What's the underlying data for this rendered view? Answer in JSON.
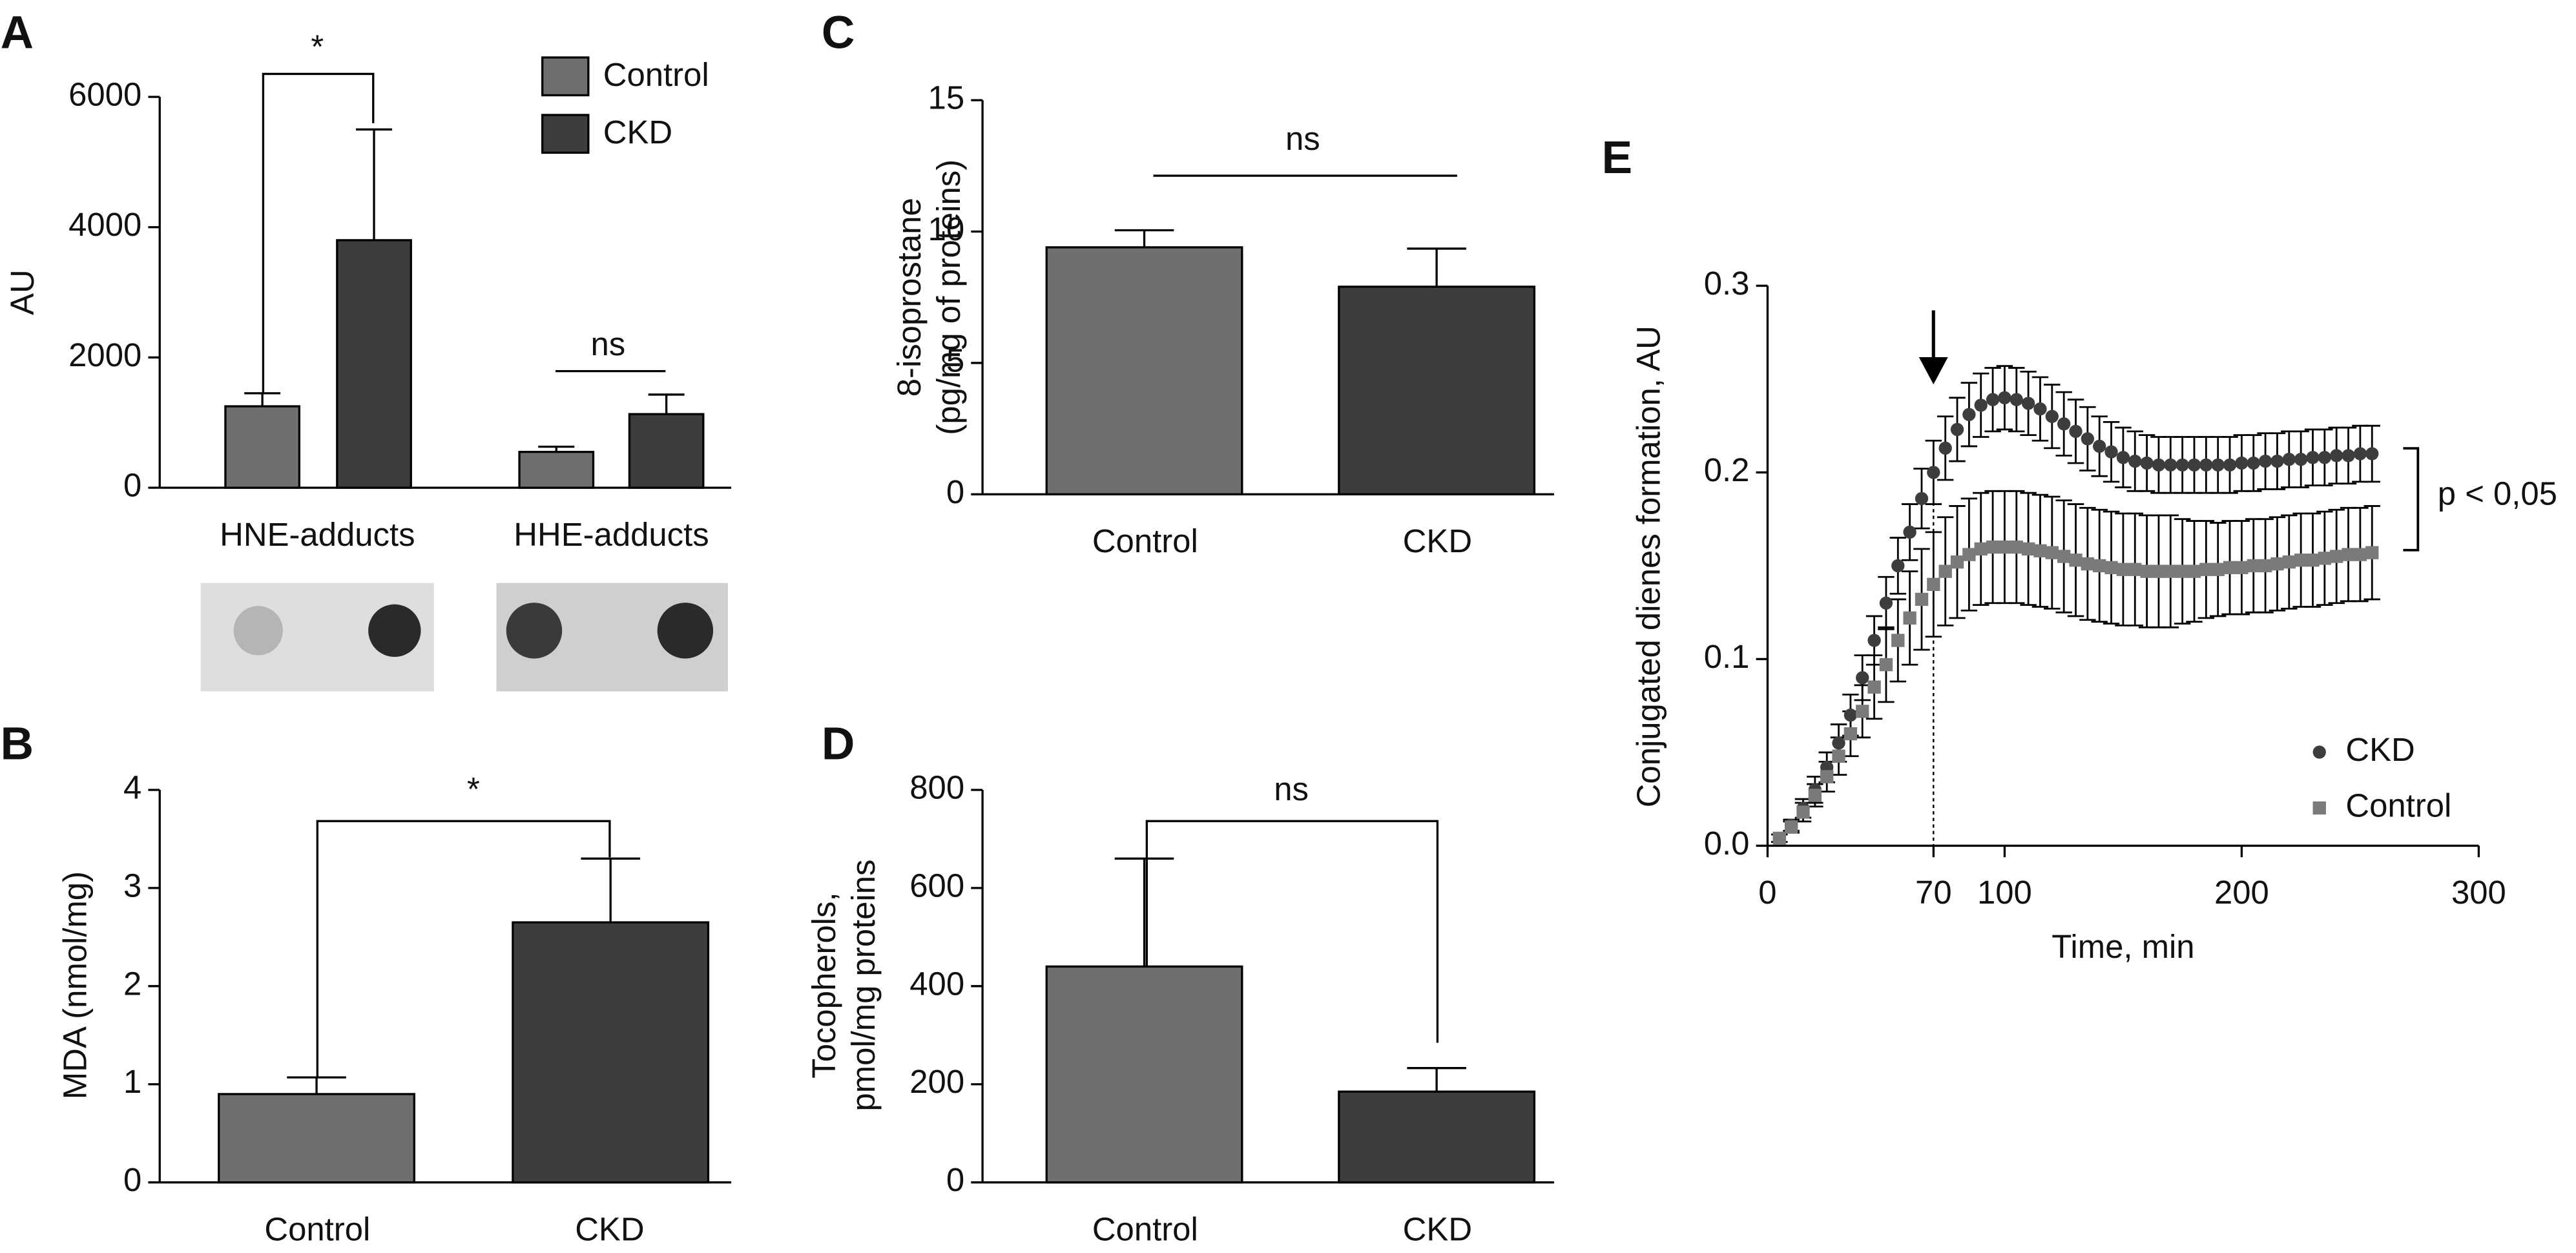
{
  "chart_data": [
    {
      "type": "bar",
      "panel_label": "A",
      "ylabel": [
        "AU"
      ],
      "categories": [
        "HNE-adducts",
        "HHE-adducts"
      ],
      "series": [
        {
          "name": "Control",
          "color": "#6f6f6f",
          "values": [
            1250,
            550
          ],
          "errors": [
            200,
            80
          ]
        },
        {
          "name": "CKD",
          "color": "#3d3d3d",
          "values": [
            3800,
            1130
          ],
          "errors": [
            1700,
            300
          ]
        }
      ],
      "ylim": [
        0,
        6000
      ],
      "yticks": [
        0,
        2000,
        4000,
        6000
      ],
      "annotations": [
        "*",
        "ns"
      ]
    },
    {
      "type": "bar",
      "panel_label": "B",
      "ylabel": [
        "MDA (nmol/mg)"
      ],
      "categories": [
        "Control",
        "CKD"
      ],
      "values": [
        0.9,
        2.65
      ],
      "errors": [
        0.17,
        0.65
      ],
      "colors": [
        "#6f6f6f",
        "#3d3d3d"
      ],
      "ylim": [
        0,
        4
      ],
      "yticks": [
        0,
        1,
        2,
        3,
        4
      ],
      "annotations": [
        "*"
      ]
    },
    {
      "type": "bar",
      "panel_label": "C",
      "ylabel": [
        "8-isoprostane",
        "(pg/mg of proteins)"
      ],
      "categories": [
        "Control",
        "CKD"
      ],
      "values": [
        9.4,
        7.9
      ],
      "errors": [
        0.65,
        1.45
      ],
      "colors": [
        "#6f6f6f",
        "#3d3d3d"
      ],
      "ylim": [
        0,
        15
      ],
      "yticks": [
        0,
        5,
        10,
        15
      ],
      "annotations": [
        "ns"
      ]
    },
    {
      "type": "bar",
      "panel_label": "D",
      "ylabel": [
        "Tocopherols,",
        "pmol/mg proteins"
      ],
      "categories": [
        "Control",
        "CKD"
      ],
      "values": [
        440,
        185
      ],
      "errors": [
        220,
        48
      ],
      "colors": [
        "#6f6f6f",
        "#3d3d3d"
      ],
      "ylim": [
        0,
        800
      ],
      "yticks": [
        0,
        200,
        400,
        600,
        800
      ],
      "annotations": [
        "ns"
      ]
    },
    {
      "type": "scatter",
      "panel_label": "E",
      "ylabel": [
        "Conjugated dienes formation, AU"
      ],
      "xlabel": "Time, min",
      "x": [
        5,
        10,
        15,
        20,
        25,
        30,
        35,
        40,
        45,
        50,
        55,
        60,
        65,
        70,
        75,
        80,
        85,
        90,
        95,
        100,
        105,
        110,
        115,
        120,
        125,
        130,
        135,
        140,
        145,
        150,
        155,
        160,
        165,
        170,
        175,
        180,
        185,
        190,
        195,
        200,
        205,
        210,
        215,
        220,
        225,
        230,
        235,
        240,
        245,
        250,
        255
      ],
      "series": [
        {
          "name": "CKD",
          "color": "#3d3d3d",
          "marker": "circle",
          "values": [
            0.004,
            0.011,
            0.02,
            0.03,
            0.042,
            0.055,
            0.07,
            0.09,
            0.11,
            0.13,
            0.15,
            0.168,
            0.186,
            0.2,
            0.213,
            0.223,
            0.231,
            0.236,
            0.239,
            0.24,
            0.239,
            0.237,
            0.234,
            0.23,
            0.226,
            0.222,
            0.218,
            0.214,
            0.211,
            0.208,
            0.206,
            0.205,
            0.204,
            0.204,
            0.204,
            0.204,
            0.204,
            0.204,
            0.204,
            0.205,
            0.205,
            0.206,
            0.206,
            0.207,
            0.207,
            0.208,
            0.208,
            0.209,
            0.209,
            0.21,
            0.21
          ],
          "errors": [
            0.002,
            0.003,
            0.005,
            0.007,
            0.008,
            0.01,
            0.011,
            0.012,
            0.013,
            0.014,
            0.015,
            0.015,
            0.016,
            0.017,
            0.017,
            0.017,
            0.017,
            0.017,
            0.017,
            0.017,
            0.017,
            0.017,
            0.017,
            0.017,
            0.017,
            0.017,
            0.017,
            0.016,
            0.016,
            0.016,
            0.016,
            0.015,
            0.015,
            0.015,
            0.015,
            0.015,
            0.015,
            0.015,
            0.015,
            0.015,
            0.015,
            0.015,
            0.015,
            0.015,
            0.015,
            0.015,
            0.015,
            0.015,
            0.015,
            0.015,
            0.015
          ]
        },
        {
          "name": "Control",
          "color": "#7a7a7a",
          "marker": "square",
          "values": [
            0.004,
            0.01,
            0.018,
            0.027,
            0.037,
            0.048,
            0.06,
            0.072,
            0.085,
            0.097,
            0.11,
            0.122,
            0.132,
            0.14,
            0.147,
            0.152,
            0.156,
            0.159,
            0.16,
            0.16,
            0.16,
            0.159,
            0.158,
            0.157,
            0.155,
            0.153,
            0.151,
            0.15,
            0.149,
            0.148,
            0.148,
            0.147,
            0.147,
            0.147,
            0.147,
            0.147,
            0.148,
            0.148,
            0.149,
            0.149,
            0.15,
            0.15,
            0.151,
            0.152,
            0.153,
            0.153,
            0.154,
            0.155,
            0.156,
            0.156,
            0.157
          ],
          "errors": [
            0.002,
            0.003,
            0.005,
            0.006,
            0.008,
            0.01,
            0.012,
            0.014,
            0.017,
            0.02,
            0.022,
            0.025,
            0.027,
            0.028,
            0.029,
            0.03,
            0.03,
            0.03,
            0.03,
            0.03,
            0.03,
            0.03,
            0.03,
            0.03,
            0.03,
            0.03,
            0.03,
            0.03,
            0.03,
            0.03,
            0.03,
            0.03,
            0.03,
            0.03,
            0.028,
            0.027,
            0.026,
            0.025,
            0.025,
            0.025,
            0.025,
            0.025,
            0.025,
            0.025,
            0.025,
            0.025,
            0.025,
            0.025,
            0.025,
            0.025,
            0.025
          ]
        }
      ],
      "xlim": [
        0,
        300
      ],
      "xticks": [
        0,
        70,
        100,
        200,
        300
      ],
      "ylim": [
        0,
        0.3
      ],
      "yticks": [
        {
          "value": 0,
          "label": "0.0"
        },
        0.1,
        0.2,
        0.3
      ],
      "annotations": [
        "p < 0,05"
      ]
    }
  ]
}
